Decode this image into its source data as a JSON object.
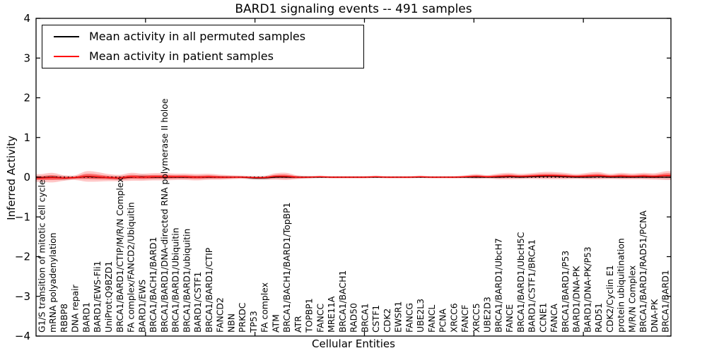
{
  "figure": {
    "title": "BARD1 signaling events -- 491 samples",
    "xlabel": "Cellular Entities",
    "ylabel": "Inferred Activity",
    "background_color": "#ffffff"
  },
  "legend": {
    "position": "upper left",
    "items": [
      {
        "label": "Mean activity in all permuted samples",
        "color": "#000000",
        "swatch": "line"
      },
      {
        "label": "Mean activity in patient samples",
        "color": "#ff0000",
        "swatch": "line"
      }
    ]
  },
  "chart_data": {
    "type": "line",
    "title": "BARD1 signaling events -- 491 samples",
    "xlabel": "Cellular Entities",
    "ylabel": "Inferred Activity",
    "ylim": [
      -4,
      4
    ],
    "yticks": [
      4,
      3,
      2,
      1,
      0,
      -1,
      -2,
      -3,
      -4
    ],
    "x_range": [
      0,
      58
    ],
    "x_major_ticks": [
      10,
      20,
      30,
      40,
      50
    ],
    "grid": false,
    "zero_line_style": "dotted",
    "legend_position": "upper left",
    "categories": [
      "G1/S transition of mitotic cell cycle",
      "mRNA polyadenylation",
      "RBBP8",
      "DNA repair",
      "BARD1",
      "BARD1/EWS-Fli1",
      "UniProt:Q9BZD1",
      "BRCA1/BARD1/CTIP/M/R/N Complex",
      "FA complex/FANCD2/Ubiquitin",
      "BARD1/EWS",
      "BRCA1/BACH1/BARD1",
      "BRCA1/BARD1/DNA-directed RNA polymerase II holoe",
      "BRCA1/BARD1/Ubiquitin",
      "BRCA1/BARD1/ubiquitin",
      "BARD1/CSTF1",
      "BRCA1/BARD1/CTIP",
      "FANCD2",
      "NBN",
      "PRKDC",
      "TP53",
      "FA complex",
      "ATM",
      "BRCA1/BACH1/BARD1/TopBP1",
      "ATR",
      "TOPBP1",
      "FANCC",
      "MRE11A",
      "BRCA1/BACH1",
      "RAD50",
      "BRCA1",
      "CSTF1",
      "CDK2",
      "EWSR1",
      "FANCG",
      "UBE2L3",
      "FANCL",
      "PCNA",
      "XRCC6",
      "FANCF",
      "XRCC5",
      "UBE2D3",
      "BRCA1/BARD1/UbcH7",
      "FANCE",
      "BRCA1/BARD1/UbcH5C",
      "BARD1/CSTF1/BRCA1",
      "CCNE1",
      "FANCA",
      "BRCA1/BARD1/P53",
      "BARD1/DNA-PK",
      "BARD1/DNA-PK/P53",
      "RAD51",
      "CDK2/Cyclin E1",
      "protein ubiquitination",
      "M/R/N Complex",
      "BRCA1/BARD1/RAD51/PCNA",
      "DNA-PK",
      "BRCA1/BARD1"
    ],
    "series": [
      {
        "name": "Mean activity in all permuted samples",
        "color": "#000000",
        "values": [
          -0.01,
          0,
          -0.02,
          -0.01,
          0.01,
          0,
          -0.01,
          -0.02,
          0,
          0.01,
          0,
          0,
          0,
          0,
          0,
          0,
          0,
          0,
          0,
          -0.02,
          -0.02,
          0,
          0,
          0,
          0,
          0,
          0,
          0,
          0,
          0,
          0,
          0,
          0,
          0,
          0,
          0,
          0,
          0,
          0,
          0,
          0,
          0,
          0.01,
          0,
          0.01,
          0.02,
          0.02,
          0.01,
          0,
          0,
          0.01,
          0,
          0,
          0,
          0,
          0,
          0
        ]
      },
      {
        "name": "Mean activity in patient samples",
        "color": "#ff0000",
        "values": [
          -0.02,
          -0.01,
          -0.02,
          -0.01,
          0.02,
          0.01,
          -0.01,
          -0.02,
          0.01,
          0,
          0.01,
          0.01,
          0.01,
          0.01,
          0,
          0.01,
          0,
          0,
          0,
          -0.01,
          -0.01,
          0.02,
          0.02,
          0,
          0,
          0.01,
          0,
          0,
          0,
          0,
          0.01,
          0,
          0,
          0,
          0.01,
          0,
          0,
          0,
          0.01,
          0.02,
          0.01,
          0.02,
          0.03,
          0.02,
          0.03,
          0.04,
          0.04,
          0.03,
          0.02,
          0.03,
          0.04,
          0.02,
          0.03,
          0.02,
          0.03,
          0.02,
          0.04
        ]
      }
    ],
    "bands": [
      {
        "name": "permuted band (mean ± spread)",
        "series": "Mean activity in all permuted samples",
        "color": "#a0a0a0",
        "opacity": 0.35,
        "halfwidths": [
          0.045,
          0.05,
          0.055,
          0.035,
          0.05,
          0.045,
          0.04,
          0.05,
          0.04,
          0.055,
          0.05,
          0.045,
          0.04,
          0.04,
          0.04,
          0.038,
          0.035,
          0.03,
          0.028,
          0.045,
          0.05,
          0.04,
          0.035,
          0.038,
          0.032,
          0.022,
          0.02,
          0.02,
          0.02,
          0.02,
          0.02,
          0.02,
          0.02,
          0.02,
          0.02,
          0.02,
          0.02,
          0.02,
          0.022,
          0.028,
          0.025,
          0.03,
          0.032,
          0.03,
          0.03,
          0.038,
          0.038,
          0.034,
          0.03,
          0.034,
          0.038,
          0.03,
          0.034,
          0.03,
          0.034,
          0.034,
          0.045
        ]
      },
      {
        "name": "patient band (mean ± 1 sd)",
        "series": "Mean activity in patient samples",
        "color": "#ff0000",
        "opacity": 0.42,
        "halfwidths": [
          0.05,
          0.06,
          0.035,
          0.03,
          0.065,
          0.06,
          0.045,
          0.04,
          0.05,
          0.045,
          0.045,
          0.045,
          0.04,
          0.04,
          0.04,
          0.038,
          0.032,
          0.025,
          0.02,
          0.02,
          0.022,
          0.04,
          0.045,
          0.022,
          0.016,
          0.015,
          0.015,
          0.015,
          0.015,
          0.015,
          0.015,
          0.014,
          0.014,
          0.014,
          0.015,
          0.014,
          0.014,
          0.015,
          0.018,
          0.03,
          0.022,
          0.035,
          0.04,
          0.032,
          0.036,
          0.045,
          0.045,
          0.04,
          0.03,
          0.04,
          0.045,
          0.032,
          0.04,
          0.036,
          0.04,
          0.04,
          0.055
        ]
      },
      {
        "name": "patient band (mean ± 2 sd)",
        "series": "Mean activity in patient samples",
        "color": "#ff0000",
        "opacity": 0.22,
        "halfwidth_multiplier_of_band_1": 2
      }
    ]
  }
}
